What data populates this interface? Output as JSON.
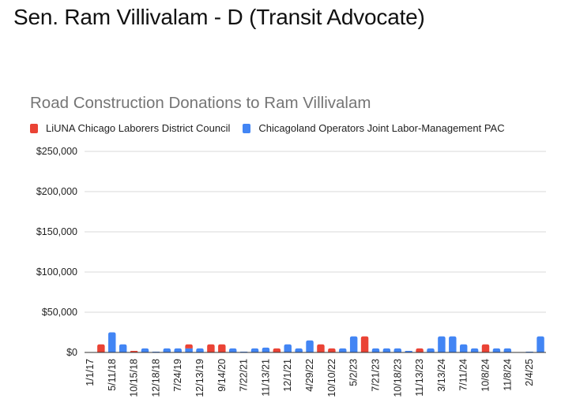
{
  "page": {
    "title": "Sen. Ram Villivalam - D (Transit Advocate)"
  },
  "chart_data": {
    "type": "bar",
    "stacked": true,
    "title": "Road Construction Donations to Ram Villivalam",
    "xlabel": "",
    "ylabel": "",
    "ylim": [
      0,
      250000
    ],
    "yticks": [
      0,
      50000,
      100000,
      150000,
      200000,
      250000
    ],
    "ytick_labels": [
      "$0",
      "$50,000",
      "$100,000",
      "$150,000",
      "$200,000",
      "$250,000"
    ],
    "grid": true,
    "legend_position": "top-left",
    "categories": [
      "1/1/17",
      "",
      "5/11/18",
      "",
      "10/15/18",
      "",
      "12/18/18",
      "",
      "7/24/19",
      "",
      "12/13/19",
      "",
      "9/14/20",
      "",
      "7/22/21",
      "",
      "11/13/21",
      "",
      "12/1/21",
      "",
      "4/29/22",
      "",
      "10/10/22",
      "",
      "5/2/23",
      "",
      "7/21/23",
      "",
      "10/18/23",
      "",
      "11/13/23",
      "",
      "3/13/24",
      "",
      "7/11/24",
      "",
      "10/8/24",
      "",
      "11/8/24",
      "",
      "2/4/25",
      ""
    ],
    "series": [
      {
        "name": "LiUNA Chicago Laborers District Council",
        "color": "#ea4335",
        "values": [
          0,
          10000,
          0,
          0,
          2000,
          0,
          0,
          0,
          0,
          5000,
          0,
          10000,
          10000,
          0,
          0,
          0,
          0,
          5000,
          0,
          0,
          0,
          10000,
          5000,
          0,
          0,
          20000,
          0,
          0,
          0,
          0,
          5000,
          0,
          0,
          0,
          0,
          0,
          10000,
          0,
          0,
          0,
          0,
          0
        ]
      },
      {
        "name": "Chicagoland Operators Joint Labor-Management PAC",
        "color": "#4285f4",
        "values": [
          0,
          0,
          25000,
          10000,
          0,
          5000,
          1000,
          5000,
          5000,
          5000,
          5000,
          0,
          0,
          5000,
          1000,
          5000,
          6000,
          0,
          10000,
          5000,
          15000,
          0,
          0,
          5000,
          20000,
          0,
          5000,
          5000,
          5000,
          2000,
          0,
          5000,
          20000,
          20000,
          10000,
          5000,
          0,
          5000,
          5000,
          0,
          1000,
          20000
        ]
      }
    ]
  }
}
